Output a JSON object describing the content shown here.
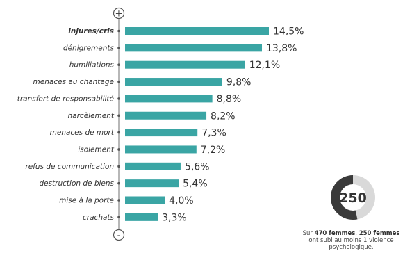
{
  "chart_data": {
    "type": "bar",
    "orientation": "horizontal",
    "categories": [
      "injures/cris",
      "dénigrements",
      "humiliations",
      "menaces au chantage",
      "transfert de responsabilité",
      "harcèlement",
      "menaces de mort",
      "isolement",
      "refus de communication",
      "destruction de biens",
      "mise à la porte",
      "crachats"
    ],
    "values": [
      14.5,
      13.8,
      12.1,
      9.8,
      8.8,
      8.2,
      7.3,
      7.2,
      5.6,
      5.4,
      4.0,
      3.3
    ],
    "value_labels": [
      "14,5%",
      "13,8%",
      "12,1%",
      "9,8%",
      "8,8%",
      "8,2%",
      "7,3%",
      "7,2%",
      "5,6%",
      "5,4%",
      "4,0%",
      "3,3%"
    ],
    "xlim": [
      0,
      14.5
    ],
    "bar_color": "#3aa5a4",
    "axis_top_symbol": "+",
    "axis_bottom_symbol": "-",
    "grid": false
  },
  "summary": {
    "donut_value": "250",
    "donut_fraction": 0.532,
    "donut_dark_color": "#3a3a3a",
    "donut_light_color": "#d9d9d9",
    "text_pre": "Sur ",
    "text_bold1": "470 femmes",
    "text_mid": ", ",
    "text_bold2": "250 femmes",
    "text_line2": "ont subi au moins 1 violence",
    "text_line3": "psychologique."
  }
}
